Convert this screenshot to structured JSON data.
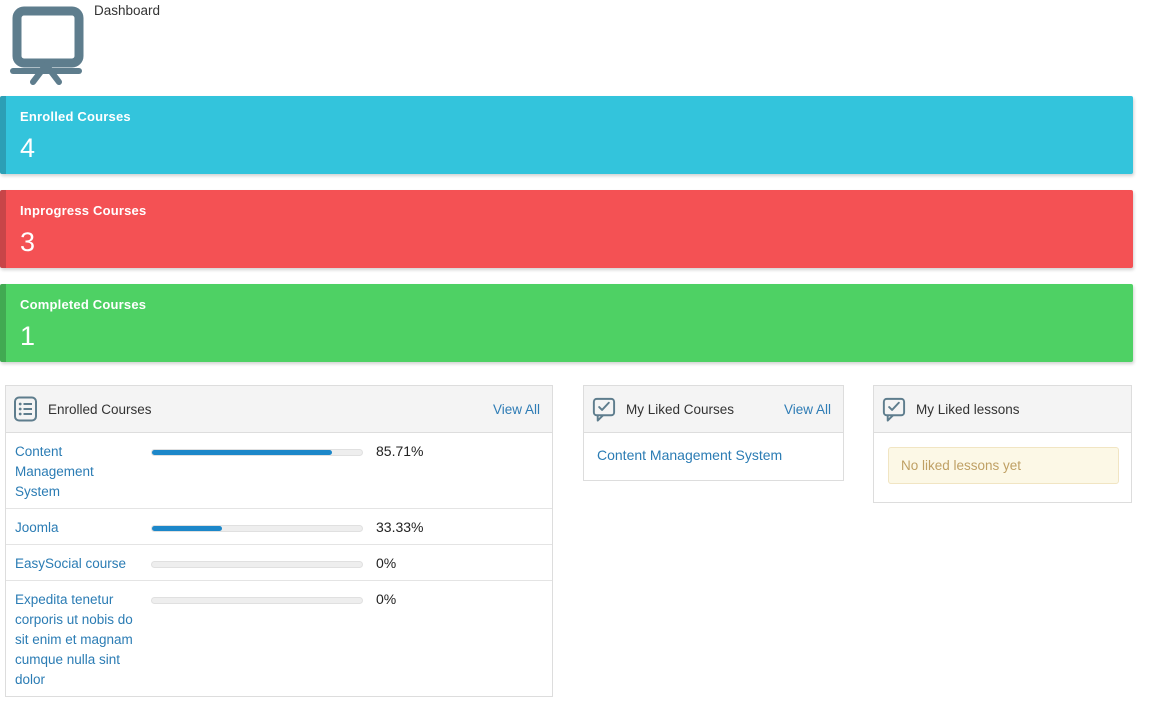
{
  "page": {
    "title": "Dashboard"
  },
  "colors": {
    "stat_cyan": "#33c4dc",
    "stat_cyan_accent": "#2c9fb5",
    "stat_red": "#f45154",
    "stat_red_accent": "#c84548",
    "stat_green": "#4ed164",
    "stat_green_accent": "#41aa52",
    "link_blue": "#2e7cb5",
    "progress_fill": "#1c87c9",
    "icon_slate": "#5e7d8d",
    "alert_bg": "#fcf8e6",
    "alert_border": "#f1e5c3",
    "alert_text": "#bfa064"
  },
  "stat_cards": [
    {
      "label": "Enrolled Courses",
      "value": "4"
    },
    {
      "label": "Inprogress Courses",
      "value": "3"
    },
    {
      "label": "Completed Courses",
      "value": "1"
    }
  ],
  "enrolled_panel": {
    "icon": "list-icon",
    "title": "Enrolled Courses",
    "view_all_label": "View All",
    "rows": [
      {
        "name": "Content Management System",
        "percent_label": "85.71%",
        "percent": 85.71
      },
      {
        "name": "Joomla",
        "percent_label": "33.33%",
        "percent": 33.33
      },
      {
        "name": "EasySocial course",
        "percent_label": "0%",
        "percent": 0
      },
      {
        "name": "Expedita tenetur corporis ut nobis do sit enim et magnam cumque nulla sint dolor",
        "percent_label": "0%",
        "percent": 0
      }
    ]
  },
  "liked_courses_panel": {
    "icon": "chat-check-icon",
    "title": "My Liked Courses",
    "view_all_label": "View All",
    "items": [
      {
        "name": "Content Management System"
      }
    ]
  },
  "liked_lessons_panel": {
    "icon": "chat-check-icon",
    "title": "My Liked lessons",
    "empty_message": "No liked lessons yet"
  }
}
